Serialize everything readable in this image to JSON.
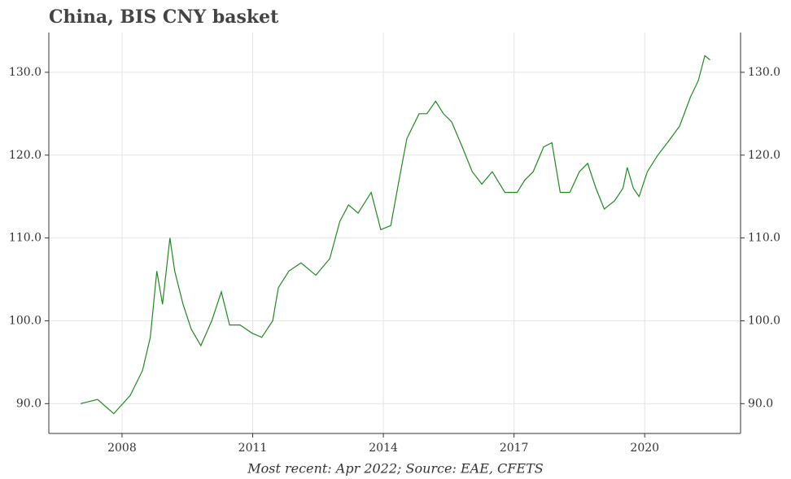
{
  "chart_data": {
    "type": "line",
    "title": "China, BIS CNY basket",
    "caption": "Most recent: Apr 2022; Source: EAE, CFETS",
    "x": [
      2007.05,
      2007.44,
      2007.81,
      2008.19,
      2008.47,
      2008.65,
      2008.8,
      2008.93,
      2009.1,
      2009.21,
      2009.4,
      2009.59,
      2009.81,
      2010.06,
      2010.28,
      2010.47,
      2010.71,
      2010.99,
      2011.21,
      2011.46,
      2011.59,
      2011.83,
      2012.11,
      2012.45,
      2012.77,
      2013.0,
      2013.2,
      2013.42,
      2013.72,
      2013.94,
      2014.17,
      2014.36,
      2014.54,
      2014.82,
      2015.0,
      2015.2,
      2015.38,
      2015.57,
      2015.81,
      2016.04,
      2016.26,
      2016.5,
      2016.79,
      2017.07,
      2017.25,
      2017.44,
      2017.68,
      2017.87,
      2018.06,
      2018.28,
      2018.5,
      2018.69,
      2018.88,
      2019.07,
      2019.31,
      2019.5,
      2019.6,
      2019.74,
      2019.87,
      2020.06,
      2020.3,
      2020.52,
      2020.8,
      2021.05,
      2021.23,
      2021.38,
      2021.5
    ],
    "series": [
      {
        "name": "BIS CNY basket",
        "color": "#1e8a1e",
        "values": [
          90,
          90.5,
          88.8,
          91,
          94,
          98,
          106,
          102,
          110,
          106,
          102,
          99,
          97,
          100,
          103.5,
          99.5,
          99.5,
          98.5,
          98,
          100,
          104,
          106,
          107,
          105.5,
          107.5,
          112,
          114,
          113,
          115.5,
          111,
          111.5,
          117,
          122,
          125,
          125,
          126.5,
          125,
          124,
          121,
          118,
          116.5,
          118,
          115.5,
          115.5,
          117,
          118,
          121,
          121.5,
          115.5,
          115.5,
          118,
          119,
          116,
          113.5,
          114.5,
          116,
          118.5,
          116,
          115,
          118,
          120,
          121.5,
          123.5,
          127,
          129,
          132,
          131.5
        ]
      }
    ],
    "xlim": [
      2006.32,
      2022.2
    ],
    "xticks": [
      2008,
      2011,
      2014,
      2017,
      2020
    ],
    "ylim": [
      86.4,
      134.8
    ],
    "yticks": [
      {
        "value": 90,
        "label": "90.0"
      },
      {
        "value": 100,
        "label": "100.0"
      },
      {
        "value": 110,
        "label": "110.0"
      },
      {
        "value": 120,
        "label": "120.0"
      },
      {
        "value": 130,
        "label": "130.0"
      }
    ],
    "grid": true
  }
}
